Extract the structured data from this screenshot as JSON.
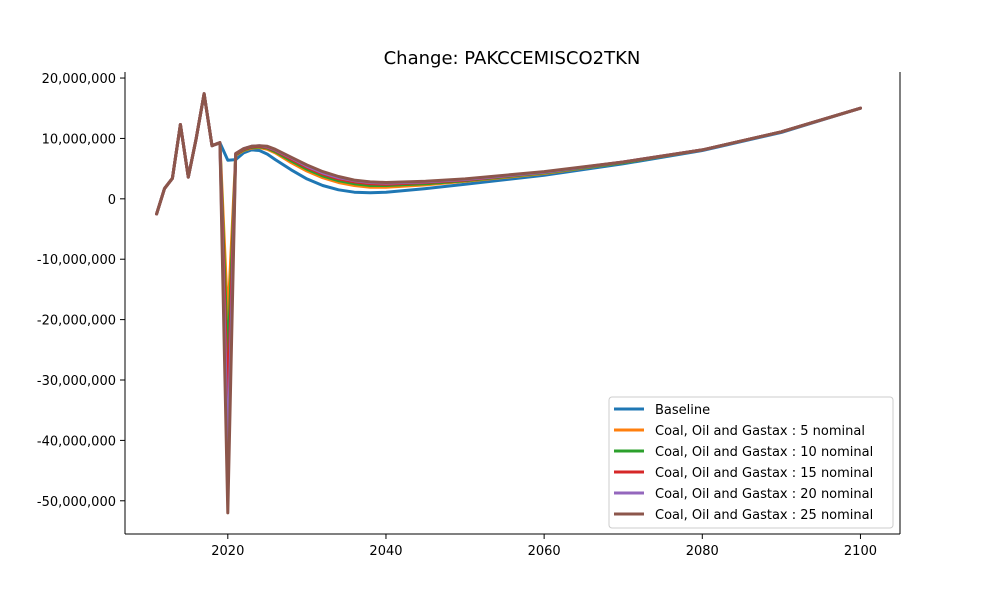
{
  "chart_data": {
    "type": "line",
    "title": "Change: PAKCCEMISCO2TKN",
    "xlabel": "",
    "ylabel": "",
    "xlim": [
      2007,
      2105
    ],
    "ylim": [
      -55500000,
      21000000
    ],
    "x_ticks": [
      2020,
      2040,
      2060,
      2080,
      2100
    ],
    "x_tick_labels": [
      "2020",
      "2040",
      "2060",
      "2080",
      "2100"
    ],
    "y_ticks": [
      20000000,
      10000000,
      0,
      -10000000,
      -20000000,
      -30000000,
      -40000000,
      -50000000
    ],
    "y_tick_labels": [
      "20,000,000",
      "10,000,000",
      "0",
      "-10,000,000",
      "-20,000,000",
      "-30,000,000",
      "-40,000,000",
      "-50,000,000"
    ],
    "grid": false,
    "legend_position": "lower-right",
    "series": [
      {
        "name": "Baseline",
        "color": "#1f77b4",
        "points": [
          [
            2011,
            -2500000
          ],
          [
            2012,
            1700000
          ],
          [
            2013,
            3400000
          ],
          [
            2014,
            12300000
          ],
          [
            2015,
            3600000
          ],
          [
            2016,
            10000000
          ],
          [
            2017,
            17400000
          ],
          [
            2018,
            8800000
          ],
          [
            2019,
            9300000
          ],
          [
            2020,
            6400000
          ],
          [
            2021,
            6500000
          ],
          [
            2022,
            7600000
          ],
          [
            2023,
            8100000
          ],
          [
            2024,
            8000000
          ],
          [
            2025,
            7400000
          ],
          [
            2026,
            6500000
          ],
          [
            2028,
            4800000
          ],
          [
            2030,
            3300000
          ],
          [
            2032,
            2200000
          ],
          [
            2034,
            1500000
          ],
          [
            2036,
            1100000
          ],
          [
            2038,
            1000000
          ],
          [
            2040,
            1100000
          ],
          [
            2045,
            1700000
          ],
          [
            2050,
            2400000
          ],
          [
            2060,
            3900000
          ],
          [
            2070,
            5800000
          ],
          [
            2080,
            8000000
          ],
          [
            2090,
            11000000
          ],
          [
            2100,
            15000000
          ]
        ]
      },
      {
        "name": "Coal, Oil and Gastax : 5 nominal",
        "color": "#ff7f0e",
        "points": [
          [
            2011,
            -2500000
          ],
          [
            2012,
            1700000
          ],
          [
            2013,
            3400000
          ],
          [
            2014,
            12300000
          ],
          [
            2015,
            3600000
          ],
          [
            2016,
            10000000
          ],
          [
            2017,
            17400000
          ],
          [
            2018,
            8800000
          ],
          [
            2019,
            9300000
          ],
          [
            2020,
            -20000000
          ],
          [
            2021,
            7200000
          ],
          [
            2022,
            8000000
          ],
          [
            2023,
            8400000
          ],
          [
            2024,
            8500000
          ],
          [
            2025,
            8200000
          ],
          [
            2026,
            7600000
          ],
          [
            2028,
            6000000
          ],
          [
            2030,
            4600000
          ],
          [
            2032,
            3500000
          ],
          [
            2034,
            2700000
          ],
          [
            2036,
            2200000
          ],
          [
            2038,
            1900000
          ],
          [
            2040,
            1900000
          ],
          [
            2045,
            2300000
          ],
          [
            2050,
            2900000
          ],
          [
            2060,
            4200000
          ],
          [
            2070,
            6000000
          ],
          [
            2080,
            8100000
          ],
          [
            2090,
            11100000
          ],
          [
            2100,
            15000000
          ]
        ]
      },
      {
        "name": "Coal, Oil and Gastax : 10 nominal",
        "color": "#2ca02c",
        "points": [
          [
            2011,
            -2500000
          ],
          [
            2012,
            1700000
          ],
          [
            2013,
            3400000
          ],
          [
            2014,
            12300000
          ],
          [
            2015,
            3600000
          ],
          [
            2016,
            10000000
          ],
          [
            2017,
            17400000
          ],
          [
            2018,
            8800000
          ],
          [
            2019,
            9300000
          ],
          [
            2020,
            -27000000
          ],
          [
            2021,
            7300000
          ],
          [
            2022,
            8100000
          ],
          [
            2023,
            8500000
          ],
          [
            2024,
            8600000
          ],
          [
            2025,
            8400000
          ],
          [
            2026,
            7800000
          ],
          [
            2028,
            6300000
          ],
          [
            2030,
            4900000
          ],
          [
            2032,
            3800000
          ],
          [
            2034,
            3000000
          ],
          [
            2036,
            2500000
          ],
          [
            2038,
            2200000
          ],
          [
            2040,
            2200000
          ],
          [
            2045,
            2500000
          ],
          [
            2050,
            3000000
          ],
          [
            2060,
            4300000
          ],
          [
            2070,
            6000000
          ],
          [
            2080,
            8100000
          ],
          [
            2090,
            11100000
          ],
          [
            2100,
            15000000
          ]
        ]
      },
      {
        "name": "Coal, Oil and Gastax : 15 nominal",
        "color": "#d62728",
        "points": [
          [
            2011,
            -2500000
          ],
          [
            2012,
            1700000
          ],
          [
            2013,
            3400000
          ],
          [
            2014,
            12300000
          ],
          [
            2015,
            3600000
          ],
          [
            2016,
            10000000
          ],
          [
            2017,
            17400000
          ],
          [
            2018,
            8800000
          ],
          [
            2019,
            9300000
          ],
          [
            2020,
            -34000000
          ],
          [
            2021,
            7400000
          ],
          [
            2022,
            8200000
          ],
          [
            2023,
            8600000
          ],
          [
            2024,
            8700000
          ],
          [
            2025,
            8500000
          ],
          [
            2026,
            8000000
          ],
          [
            2028,
            6600000
          ],
          [
            2030,
            5200000
          ],
          [
            2032,
            4100000
          ],
          [
            2034,
            3300000
          ],
          [
            2036,
            2800000
          ],
          [
            2038,
            2500000
          ],
          [
            2040,
            2400000
          ],
          [
            2045,
            2700000
          ],
          [
            2050,
            3100000
          ],
          [
            2060,
            4400000
          ],
          [
            2070,
            6100000
          ],
          [
            2080,
            8100000
          ],
          [
            2090,
            11100000
          ],
          [
            2100,
            15000000
          ]
        ]
      },
      {
        "name": "Coal, Oil and Gastax : 20 nominal",
        "color": "#9467bd",
        "points": [
          [
            2011,
            -2500000
          ],
          [
            2012,
            1700000
          ],
          [
            2013,
            3400000
          ],
          [
            2014,
            12300000
          ],
          [
            2015,
            3600000
          ],
          [
            2016,
            10000000
          ],
          [
            2017,
            17400000
          ],
          [
            2018,
            8800000
          ],
          [
            2019,
            9300000
          ],
          [
            2020,
            -43000000
          ],
          [
            2021,
            7500000
          ],
          [
            2022,
            8300000
          ],
          [
            2023,
            8700000
          ],
          [
            2024,
            8800000
          ],
          [
            2025,
            8600000
          ],
          [
            2026,
            8100000
          ],
          [
            2028,
            6800000
          ],
          [
            2030,
            5400000
          ],
          [
            2032,
            4300000
          ],
          [
            2034,
            3500000
          ],
          [
            2036,
            3000000
          ],
          [
            2038,
            2700000
          ],
          [
            2040,
            2600000
          ],
          [
            2045,
            2800000
          ],
          [
            2050,
            3200000
          ],
          [
            2060,
            4400000
          ],
          [
            2070,
            6100000
          ],
          [
            2080,
            8100000
          ],
          [
            2090,
            11100000
          ],
          [
            2100,
            15000000
          ]
        ]
      },
      {
        "name": "Coal, Oil and Gastax : 25 nominal",
        "color": "#8c564b",
        "points": [
          [
            2011,
            -2500000
          ],
          [
            2012,
            1700000
          ],
          [
            2013,
            3400000
          ],
          [
            2014,
            12300000
          ],
          [
            2015,
            3600000
          ],
          [
            2016,
            10000000
          ],
          [
            2017,
            17400000
          ],
          [
            2018,
            8800000
          ],
          [
            2019,
            9300000
          ],
          [
            2020,
            -52000000
          ],
          [
            2021,
            7500000
          ],
          [
            2022,
            8300000
          ],
          [
            2023,
            8700000
          ],
          [
            2024,
            8800000
          ],
          [
            2025,
            8700000
          ],
          [
            2026,
            8200000
          ],
          [
            2028,
            6900000
          ],
          [
            2030,
            5600000
          ],
          [
            2032,
            4500000
          ],
          [
            2034,
            3700000
          ],
          [
            2036,
            3100000
          ],
          [
            2038,
            2800000
          ],
          [
            2040,
            2700000
          ],
          [
            2045,
            2900000
          ],
          [
            2050,
            3300000
          ],
          [
            2060,
            4500000
          ],
          [
            2070,
            6100000
          ],
          [
            2080,
            8100000
          ],
          [
            2090,
            11100000
          ],
          [
            2100,
            15000000
          ]
        ]
      }
    ]
  }
}
